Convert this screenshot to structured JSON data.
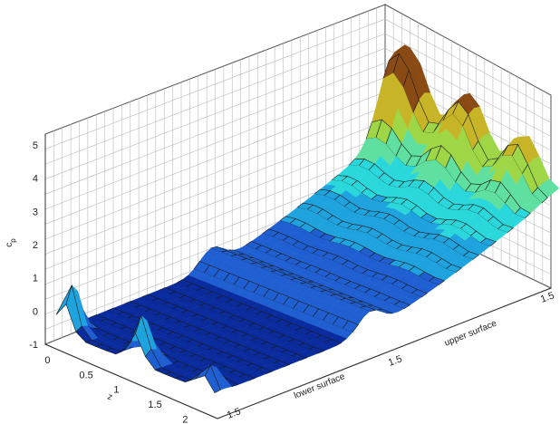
{
  "chart_data": {
    "type": "surface",
    "title": "",
    "zlabel": "c",
    "zlabel_subscript": "p",
    "zlim": [
      -1,
      5
    ],
    "z_ticks": [
      "-1",
      "0",
      "1",
      "2",
      "3",
      "4",
      "5"
    ],
    "xlabel": "z",
    "x_ticks": [
      "0",
      "0.5",
      "1",
      "1.5",
      "2"
    ],
    "y_axis_annotations": [
      {
        "position": "start",
        "text": "1.5",
        "suffix": "lower surface"
      },
      {
        "position": "middle",
        "text": "1.5",
        "suffix": "upper surface"
      },
      {
        "position": "end",
        "text": "1.5"
      }
    ],
    "grid": true,
    "colormap": [
      "#002a9a",
      "#1b63d6",
      "#1fa7e0",
      "#27e0e0",
      "#56e29a",
      "#8fd84a",
      "#c6c026",
      "#b07018"
    ],
    "description_of_shape": "pressure coefficient surface: flat low region near front, rising to peaks near back",
    "series": []
  }
}
